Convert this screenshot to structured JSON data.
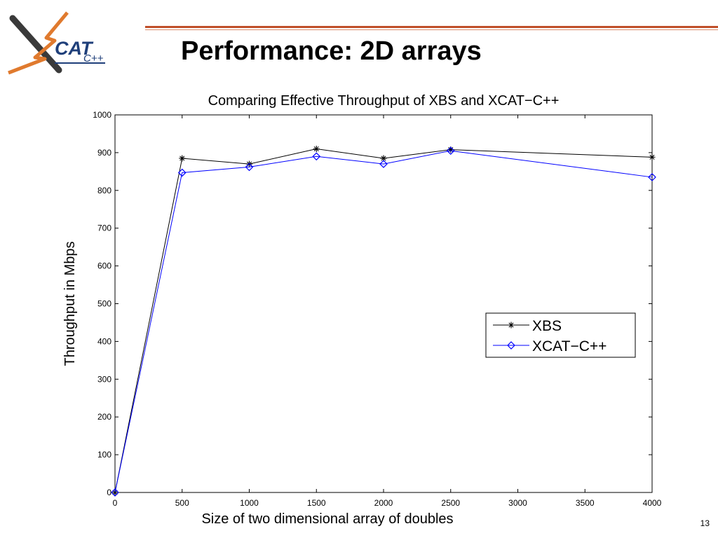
{
  "slide": {
    "title": "Performance: 2D arrays",
    "page_number": "13",
    "logo_text": "CAT",
    "logo_suffix": "C++",
    "accent_color": "#c0502a"
  },
  "chart_data": {
    "type": "line",
    "title": "Comparing Effective Throughput of XBS and XCAT−C++",
    "xlabel": "Size of two dimensional array of doubles",
    "ylabel": "Throughput in Mbps",
    "xlim": [
      0,
      4000
    ],
    "ylim": [
      0,
      1000
    ],
    "xticks": [
      0,
      500,
      1000,
      1500,
      2000,
      2500,
      3000,
      3500,
      4000
    ],
    "yticks": [
      0,
      100,
      200,
      300,
      400,
      500,
      600,
      700,
      800,
      900,
      1000
    ],
    "grid": false,
    "legend_position": "center-right",
    "x": [
      0,
      500,
      1000,
      1500,
      2000,
      2500,
      4000
    ],
    "series": [
      {
        "name": "XBS",
        "values": [
          0,
          885,
          870,
          910,
          885,
          908,
          888
        ],
        "color": "#000000",
        "marker": "star"
      },
      {
        "name": "XCAT−C++",
        "values": [
          0,
          847,
          862,
          890,
          870,
          905,
          835
        ],
        "color": "#0000ff",
        "marker": "diamond"
      }
    ]
  }
}
